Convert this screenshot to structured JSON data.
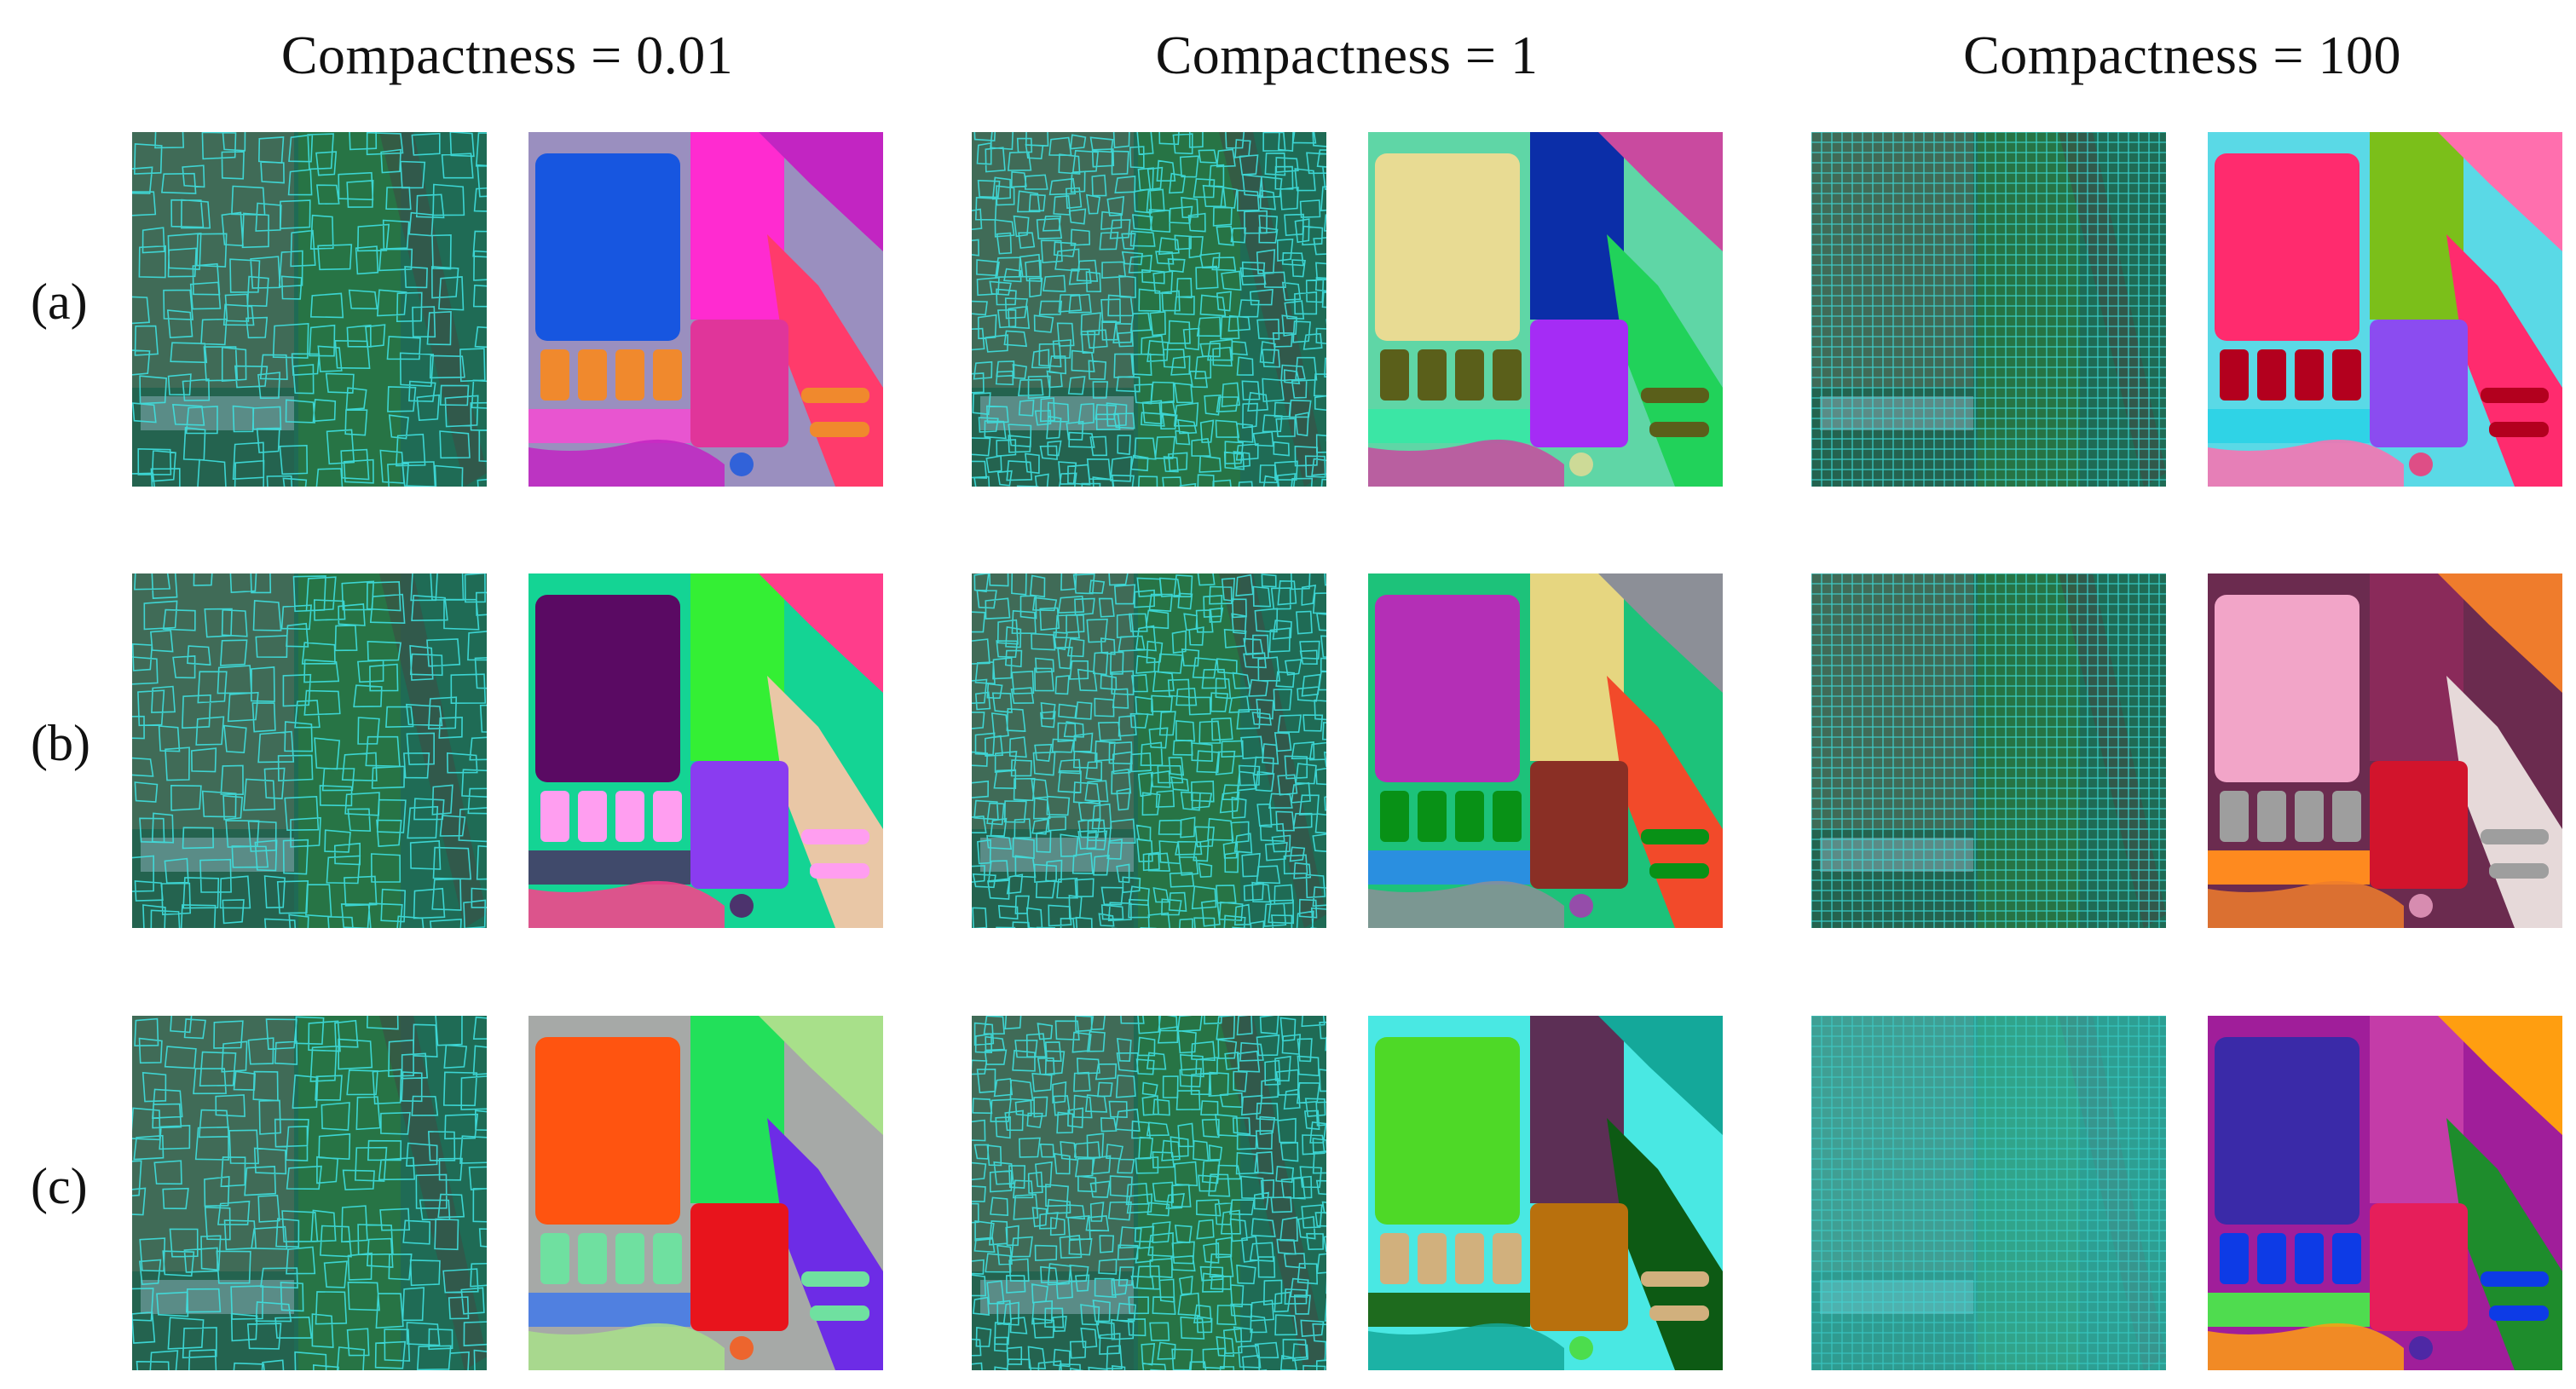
{
  "columns": [
    {
      "heading": "Compactness = 0.01"
    },
    {
      "heading": "Compactness = 1"
    },
    {
      "heading": "Compactness = 100"
    }
  ],
  "rows": [
    {
      "label": "(a)"
    },
    {
      "label": "(b)"
    },
    {
      "label": "(c)"
    }
  ],
  "palette": {
    "overlay_line": "#3fe0e0",
    "overlay_base": "#1f6b55",
    "background": "#ffffff"
  }
}
